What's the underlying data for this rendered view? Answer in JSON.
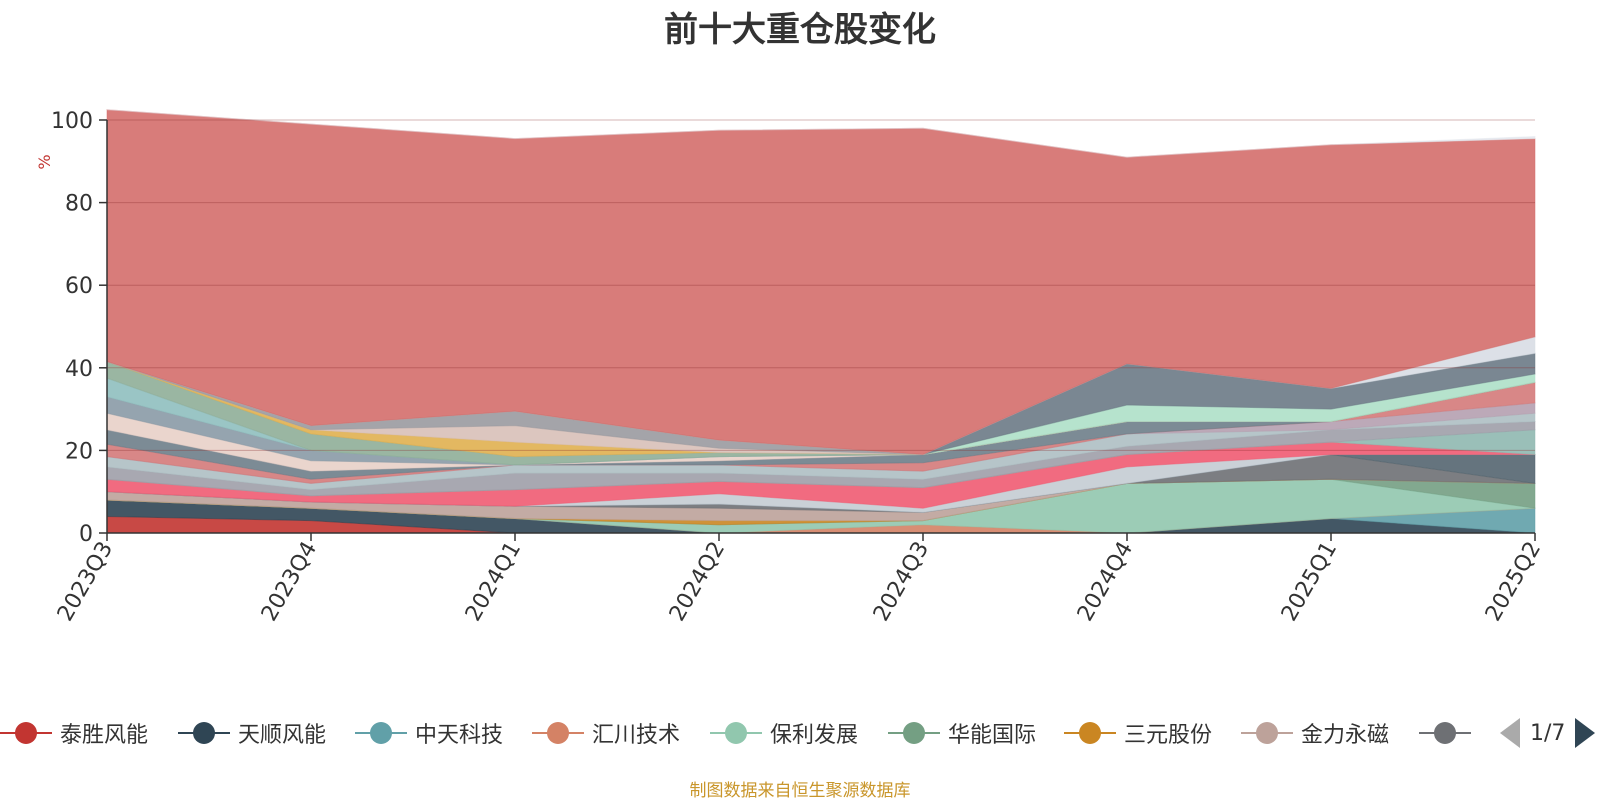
{
  "chart_data": {
    "type": "area",
    "title": "前十大重仓股变化",
    "ylabel": "%",
    "ylim": [
      0,
      100
    ],
    "yticks": [
      0,
      20,
      40,
      60,
      80,
      100
    ],
    "grid": true,
    "x": [
      "2023Q3",
      "2023Q4",
      "2024Q1",
      "2024Q2",
      "2024Q3",
      "2024Q4",
      "2025Q1",
      "2025Q2"
    ],
    "series": [
      {
        "name": "泰胜风能",
        "color": "#c23531",
        "values": [
          4,
          3,
          0,
          0,
          0,
          0,
          0,
          0
        ]
      },
      {
        "name": "天顺风能",
        "color": "#2f4554",
        "values": [
          4,
          3,
          3.5,
          0,
          0,
          0,
          3.5,
          0
        ]
      },
      {
        "name": "中天科技",
        "color": "#61a0a8",
        "values": [
          0,
          0,
          0,
          0,
          0,
          0,
          0,
          6
        ]
      },
      {
        "name": "汇川技术",
        "color": "#d48265",
        "values": [
          0,
          0,
          0,
          0,
          2,
          0,
          0,
          0
        ]
      },
      {
        "name": "保利发展",
        "color": "#91c7ae",
        "values": [
          0,
          0,
          0,
          2,
          1,
          12,
          9.5,
          0
        ]
      },
      {
        "name": "华能国际",
        "color": "#749f83",
        "values": [
          0,
          0,
          0,
          0,
          0,
          0,
          0,
          6
        ]
      },
      {
        "name": "三元股份",
        "color": "#ca8622",
        "values": [
          0,
          0,
          0,
          1,
          0,
          0,
          0,
          0
        ]
      },
      {
        "name": "金力永磁",
        "color": "#bda29a",
        "values": [
          2,
          1.5,
          3,
          3,
          2,
          0,
          0,
          0
        ]
      },
      {
        "name": "",
        "color": "#6e7074",
        "values": [
          0,
          0,
          0,
          1,
          0,
          0,
          6,
          0
        ]
      },
      {
        "name": "",
        "color": "#546570",
        "values": [
          0,
          0,
          0,
          0,
          0,
          0,
          0,
          7
        ]
      },
      {
        "name": "",
        "color": "#c4ccd3",
        "values": [
          0,
          0,
          0,
          2.5,
          1,
          4,
          0,
          0
        ]
      },
      {
        "name": "",
        "color": "#f05b72",
        "values": [
          3,
          1.5,
          4,
          3,
          5,
          3,
          3,
          0
        ]
      },
      {
        "name": "",
        "color": "#8fb8b0",
        "values": [
          0,
          0,
          0,
          0,
          0,
          0,
          0,
          6
        ]
      },
      {
        "name": "",
        "color": "#9e9ea8",
        "values": [
          3,
          1.5,
          4,
          2,
          2,
          2,
          3,
          2
        ]
      },
      {
        "name": "",
        "color": "#aebfc3",
        "values": [
          2.5,
          1.5,
          2,
          2,
          2,
          3,
          0,
          2
        ]
      },
      {
        "name": "",
        "color": "#b5a0b0",
        "values": [
          0,
          0,
          0,
          0,
          0,
          0,
          2,
          2.5
        ]
      },
      {
        "name": "",
        "color": "#d47a7a",
        "values": [
          3,
          1,
          0,
          0,
          2,
          0,
          0,
          5
        ]
      },
      {
        "name": "",
        "color": "#6e7e8a",
        "values": [
          3.5,
          2,
          0,
          1,
          2,
          3,
          0,
          0
        ]
      },
      {
        "name": "",
        "color": "#e8d0c8",
        "values": [
          4,
          2.5,
          0,
          1,
          0,
          0,
          0,
          0
        ]
      },
      {
        "name": "",
        "color": "#8a9aa6",
        "values": [
          4,
          2.5,
          0,
          0,
          0,
          0,
          0,
          0
        ]
      },
      {
        "name": "",
        "color": "#8fbfbf",
        "values": [
          4.5,
          0,
          0,
          0,
          0,
          0,
          0,
          0
        ]
      },
      {
        "name": "",
        "color": "#8fae98",
        "values": [
          4,
          4,
          2,
          1,
          0,
          0,
          0,
          0
        ]
      },
      {
        "name": "",
        "color": "#e0b050",
        "values": [
          0,
          1,
          3.5,
          0,
          0,
          0,
          0,
          0
        ]
      },
      {
        "name": "",
        "color": "#d8c0b8",
        "values": [
          0,
          0,
          4,
          1,
          0,
          0,
          0,
          0
        ]
      },
      {
        "name": "",
        "color": "#9a9aa0",
        "values": [
          0,
          1,
          3.5,
          2,
          0,
          0,
          0,
          0
        ]
      },
      {
        "name": "",
        "color": "#aee0c8",
        "values": [
          0,
          0,
          0,
          0,
          0,
          4,
          3,
          2
        ]
      },
      {
        "name": "",
        "color": "#6b7a86",
        "values": [
          0,
          0,
          0,
          0,
          0,
          10,
          5,
          5
        ]
      },
      {
        "name": "",
        "color": "#d8dde4",
        "values": [
          0,
          0,
          0,
          0,
          0,
          0,
          0,
          4
        ]
      },
      {
        "name": "",
        "color": "#d46e6c",
        "values": [
          61,
          73,
          66,
          75,
          79,
          50,
          59,
          48
        ]
      },
      {
        "name": "",
        "color": "#e4e8ee",
        "values": [
          0,
          0,
          0,
          0,
          0,
          0,
          0,
          0.5
        ]
      }
    ]
  },
  "legend": {
    "items": [
      {
        "label": "泰胜风能",
        "color": "#c23531"
      },
      {
        "label": "天顺风能",
        "color": "#2f4554"
      },
      {
        "label": "中天科技",
        "color": "#61a0a8"
      },
      {
        "label": "汇川技术",
        "color": "#d48265"
      },
      {
        "label": "保利发展",
        "color": "#91c7ae"
      },
      {
        "label": "华能国际",
        "color": "#749f83"
      },
      {
        "label": "三元股份",
        "color": "#ca8622"
      },
      {
        "label": "金力永磁",
        "color": "#bda29a"
      },
      {
        "label": "",
        "color": "#6e7074"
      }
    ],
    "page_text": "1/7"
  },
  "source_note": "制图数据来自恒生聚源数据库"
}
